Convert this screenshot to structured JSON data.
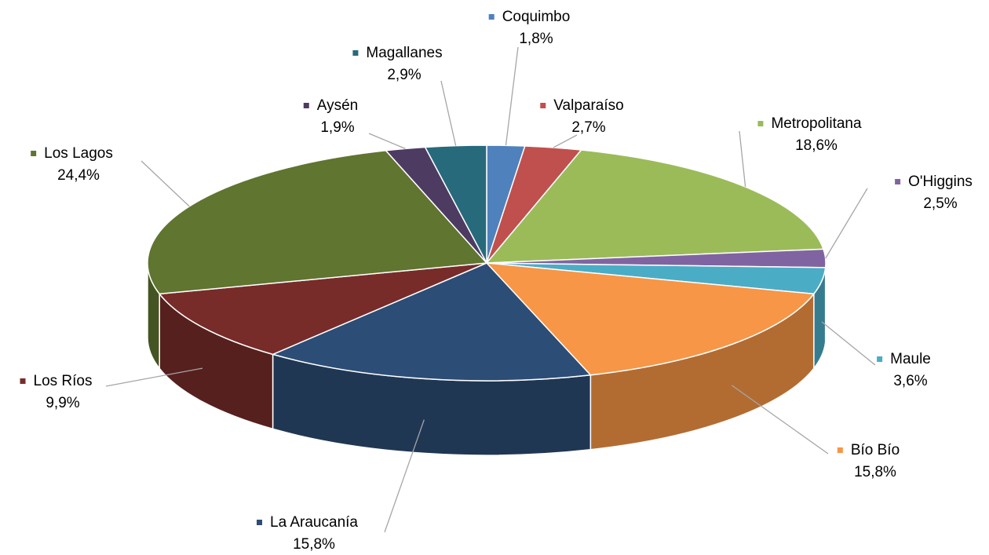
{
  "chart_data": {
    "type": "pie",
    "categories": [
      "Coquimbo",
      "Valparaíso",
      "Metropolitana",
      "O'Higgins",
      "Maule",
      "Bío Bío",
      "La Araucanía",
      "Los Ríos",
      "Los Lagos",
      "Aysén",
      "Magallanes"
    ],
    "values": [
      1.8,
      2.7,
      18.6,
      2.5,
      3.6,
      15.8,
      15.8,
      9.9,
      24.4,
      1.9,
      2.9
    ],
    "value_labels": [
      "1,8%",
      "2,7%",
      "18,6%",
      "2,5%",
      "3,6%",
      "15,8%",
      "15,8%",
      "9,9%",
      "24,4%",
      "1,9%",
      "2,9%"
    ],
    "colors": [
      "#4f81bd",
      "#c0504d",
      "#9bbb59",
      "#8064a2",
      "#4bacc6",
      "#f79646",
      "#2c4d75",
      "#772c2a",
      "#5f7530",
      "#4d3b62",
      "#276a7c"
    ]
  }
}
